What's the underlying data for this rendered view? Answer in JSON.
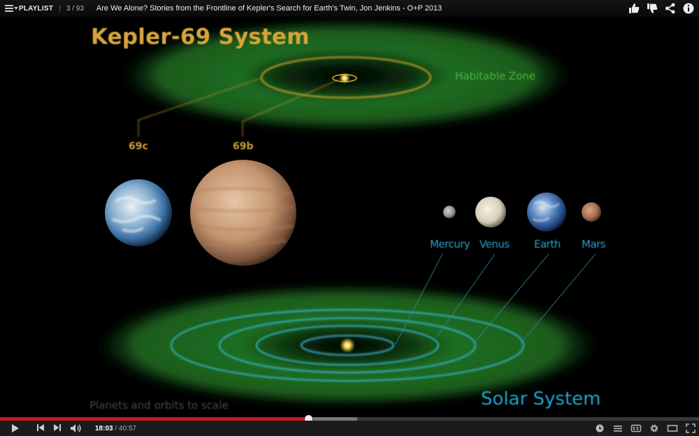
{
  "topbar": {
    "playlist_label": "PLAYLIST",
    "separator": "|",
    "playlist_count": "3 / 93",
    "video_title": "Are We Alone? Stories from the Frontline of Kepler's Search for Earth's Twin, Jon Jenkins - O+P 2013",
    "icons": [
      "thumbs-up-icon",
      "thumbs-down-icon",
      "share-icon",
      "info-icon"
    ]
  },
  "video_frame": {
    "title": "Kepler-69 System",
    "habitable_zone": "Habitable Zone",
    "label_69c": "69c",
    "label_69b": "69b",
    "planets": {
      "mercury": "Mercury",
      "venus": "Venus",
      "earth": "Earth",
      "mars": "Mars"
    },
    "scale_note": "Planets and orbits to scale",
    "solar_system": "Solar System",
    "colors": {
      "title_gold": "#d8a43a",
      "habitable_green": "#1f6d22",
      "orbit_cyan": "#37b6d6",
      "orbit_gold": "#d0a62a"
    }
  },
  "player": {
    "current_time": "18:03",
    "time_separator": " / ",
    "total_time": "40:57",
    "played_fraction": 0.441,
    "buffered_fraction": 0.511,
    "left_icons": [
      "play-icon",
      "previous-icon",
      "next-icon",
      "volume-icon"
    ],
    "right_icons": [
      "watch-later-icon",
      "playlist-icon",
      "captions-icon",
      "settings-icon",
      "theater-mode-icon",
      "fullscreen-icon"
    ],
    "colors": {
      "progress_red": "#cc181e"
    }
  }
}
